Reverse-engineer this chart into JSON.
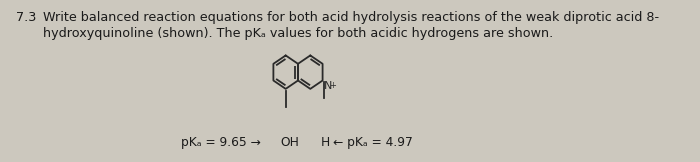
{
  "background_color": "#ccc8be",
  "text_color": "#1a1a1a",
  "problem_number": "7.3",
  "title_line1": "Write balanced reaction equations for both acid hydrolysis reactions of the weak diprotic acid 8-",
  "title_line2": "hydroxyquinoline (shown). The pKₐ values for both acidic hydrogens are shown.",
  "pka1_label": "pKₐ = 9.65 →",
  "pka2_label": "← pKₐ = 4.97",
  "oh_label": "OH",
  "h_label": "H",
  "font_size_title": 9.2,
  "font_size_bottom": 8.8,
  "font_size_problem": 9.2
}
